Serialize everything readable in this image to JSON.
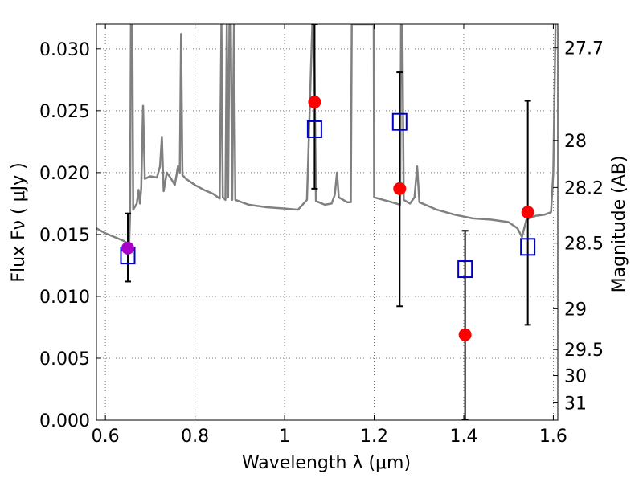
{
  "chart_data": {
    "type": "scatter",
    "title": "",
    "xlabel": "Wavelength  λ (μm)",
    "ylabel_left": "Flux  Fν  ( μJy )",
    "ylabel_right": "Magnitude (AB)",
    "xlim": [
      0.58,
      1.61
    ],
    "ylim": [
      0.0,
      0.032
    ],
    "grid": true,
    "x_ticks": [
      0.6,
      0.8,
      1.0,
      1.2,
      1.4,
      1.6
    ],
    "x_tick_labels": [
      "0.6",
      "0.8",
      "1",
      "1.2",
      "1.4",
      "1.6"
    ],
    "y_ticks": [
      0.0,
      0.005,
      0.01,
      0.015,
      0.02,
      0.025,
      0.03
    ],
    "y_tick_labels": [
      "0.000",
      "0.005",
      "0.010",
      "0.015",
      "0.020",
      "0.025",
      "0.030"
    ],
    "right_ticks": [
      {
        "label": "27.7",
        "flux": 0.0301
      },
      {
        "label": "28",
        "flux": 0.0226
      },
      {
        "label": "28.2",
        "flux": 0.0188
      },
      {
        "label": "28.5",
        "flux": 0.0143
      },
      {
        "label": "29",
        "flux": 0.009
      },
      {
        "label": "29.5",
        "flux": 0.0057
      },
      {
        "label": "30",
        "flux": 0.0036
      },
      {
        "label": "31",
        "flux": 0.0014
      }
    ],
    "colors": {
      "spectrum": "#808080",
      "observed": "#ff0000",
      "model": "#0000cc",
      "overlap": "#aa00cc",
      "errorbar": "#000000",
      "grid": "#777777"
    },
    "series": [
      {
        "name": "observed photometry",
        "marker": "circle",
        "points": [
          {
            "x": 0.65,
            "y": 0.0139,
            "yerr_low": 0.0112,
            "yerr_high": 0.0167
          },
          {
            "x": 1.067,
            "y": 0.0257,
            "yerr_low": 0.0187,
            "yerr_high": 0.032
          },
          {
            "x": 1.257,
            "y": 0.0187,
            "yerr_low": 0.0092,
            "yerr_high": 0.0281
          },
          {
            "x": 1.403,
            "y": 0.0069,
            "yerr_low": 0.0,
            "yerr_high": 0.0153
          },
          {
            "x": 1.543,
            "y": 0.0168,
            "yerr_low": 0.0077,
            "yerr_high": 0.0258
          }
        ]
      },
      {
        "name": "model photometry",
        "marker": "square",
        "points": [
          {
            "x": 0.65,
            "y": 0.0133
          },
          {
            "x": 1.067,
            "y": 0.0235
          },
          {
            "x": 1.257,
            "y": 0.0241
          },
          {
            "x": 1.403,
            "y": 0.0122
          },
          {
            "x": 1.543,
            "y": 0.014
          }
        ]
      },
      {
        "name": "model spectrum",
        "marker": "line",
        "points": [
          [
            0.58,
            0.0155
          ],
          [
            0.6,
            0.0151
          ],
          [
            0.62,
            0.0148
          ],
          [
            0.64,
            0.0145
          ],
          [
            0.653,
            0.0142
          ],
          [
            0.655,
            0.0165
          ],
          [
            0.657,
            0.032
          ],
          [
            0.66,
            0.032
          ],
          [
            0.662,
            0.017
          ],
          [
            0.67,
            0.0175
          ],
          [
            0.674,
            0.0186
          ],
          [
            0.677,
            0.0175
          ],
          [
            0.68,
            0.0187
          ],
          [
            0.684,
            0.0254
          ],
          [
            0.688,
            0.0195
          ],
          [
            0.7,
            0.0197
          ],
          [
            0.715,
            0.0196
          ],
          [
            0.722,
            0.0205
          ],
          [
            0.726,
            0.0229
          ],
          [
            0.73,
            0.0185
          ],
          [
            0.737,
            0.02
          ],
          [
            0.745,
            0.0196
          ],
          [
            0.755,
            0.019
          ],
          [
            0.762,
            0.0205
          ],
          [
            0.766,
            0.02
          ],
          [
            0.769,
            0.0312
          ],
          [
            0.772,
            0.0198
          ],
          [
            0.78,
            0.0195
          ],
          [
            0.8,
            0.019
          ],
          [
            0.82,
            0.0186
          ],
          [
            0.84,
            0.0183
          ],
          [
            0.855,
            0.0179
          ],
          [
            0.859,
            0.032
          ],
          [
            0.862,
            0.018
          ],
          [
            0.868,
            0.0178
          ],
          [
            0.871,
            0.032
          ],
          [
            0.874,
            0.018
          ],
          [
            0.877,
            0.032
          ],
          [
            0.88,
            0.032
          ],
          [
            0.883,
            0.0178
          ],
          [
            0.887,
            0.032
          ],
          [
            0.89,
            0.0178
          ],
          [
            0.92,
            0.0174
          ],
          [
            0.96,
            0.0172
          ],
          [
            1.0,
            0.0171
          ],
          [
            1.03,
            0.017
          ],
          [
            1.05,
            0.0178
          ],
          [
            1.062,
            0.032
          ],
          [
            1.066,
            0.032
          ],
          [
            1.07,
            0.0177
          ],
          [
            1.09,
            0.0174
          ],
          [
            1.105,
            0.0175
          ],
          [
            1.112,
            0.0182
          ],
          [
            1.117,
            0.02
          ],
          [
            1.121,
            0.018
          ],
          [
            1.14,
            0.0176
          ],
          [
            1.148,
            0.0176
          ],
          [
            1.15,
            0.032
          ],
          [
            1.199,
            0.032
          ],
          [
            1.2,
            0.018
          ],
          [
            1.22,
            0.0178
          ],
          [
            1.24,
            0.0176
          ],
          [
            1.258,
            0.0174
          ],
          [
            1.26,
            0.032
          ],
          [
            1.263,
            0.032
          ],
          [
            1.266,
            0.0178
          ],
          [
            1.28,
            0.0175
          ],
          [
            1.29,
            0.018
          ],
          [
            1.296,
            0.0205
          ],
          [
            1.301,
            0.0176
          ],
          [
            1.34,
            0.017
          ],
          [
            1.38,
            0.0166
          ],
          [
            1.42,
            0.0163
          ],
          [
            1.46,
            0.0162
          ],
          [
            1.5,
            0.016
          ],
          [
            1.52,
            0.0155
          ],
          [
            1.53,
            0.0148
          ],
          [
            1.54,
            0.0162
          ],
          [
            1.56,
            0.0165
          ],
          [
            1.58,
            0.0166
          ],
          [
            1.595,
            0.0168
          ],
          [
            1.6,
            0.02
          ],
          [
            1.605,
            0.032
          ]
        ]
      }
    ]
  }
}
